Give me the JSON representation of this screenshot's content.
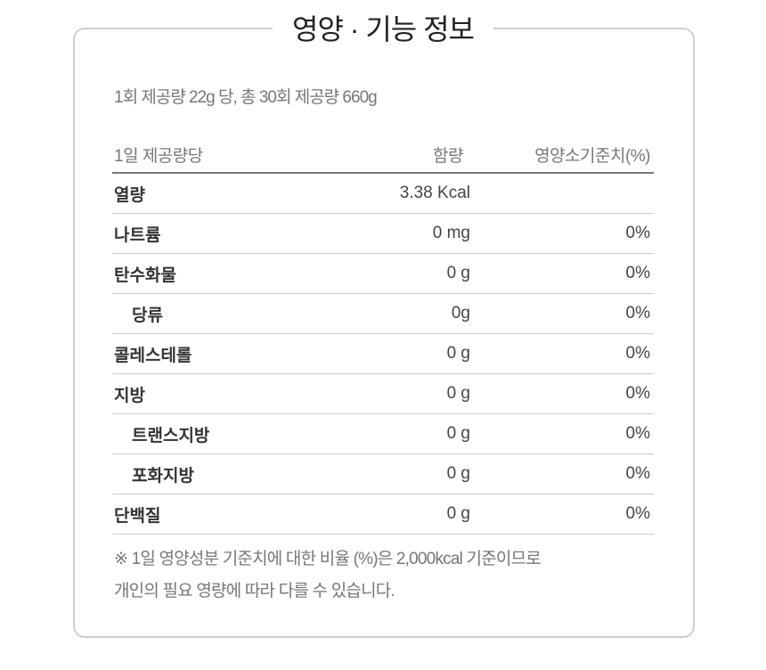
{
  "title": "영양 · 기능 정보",
  "serving": "1회 제공량 22g 당, 총 30회 제공량 660g",
  "table": {
    "headers": [
      "1일 제공량당",
      "함량",
      "영양소기준치(%)"
    ],
    "rows": [
      {
        "label": "열량",
        "amount": "3.38 Kcal",
        "percent": "",
        "indent": false
      },
      {
        "label": "나트륨",
        "amount": "0 mg",
        "percent": "0%",
        "indent": false
      },
      {
        "label": "탄수화물",
        "amount": "0 g",
        "percent": "0%",
        "indent": false
      },
      {
        "label": "당류",
        "amount": "0g",
        "percent": "0%",
        "indent": true
      },
      {
        "label": "콜레스테롤",
        "amount": "0 g",
        "percent": "0%",
        "indent": false
      },
      {
        "label": "지방",
        "amount": "0 g",
        "percent": "0%",
        "indent": false
      },
      {
        "label": "트랜스지방",
        "amount": "0 g",
        "percent": "0%",
        "indent": true
      },
      {
        "label": "포화지방",
        "amount": "0 g",
        "percent": "0%",
        "indent": true
      },
      {
        "label": "단백질",
        "amount": "0 g",
        "percent": "0%",
        "indent": false
      }
    ]
  },
  "note": {
    "line1": "※ 1일 영양성분 기준치에 대한 비율 (%)은 2,000kcal 기준이므로",
    "line2": "개인의 필요 영량에 따라 다를 수 있습니다."
  }
}
